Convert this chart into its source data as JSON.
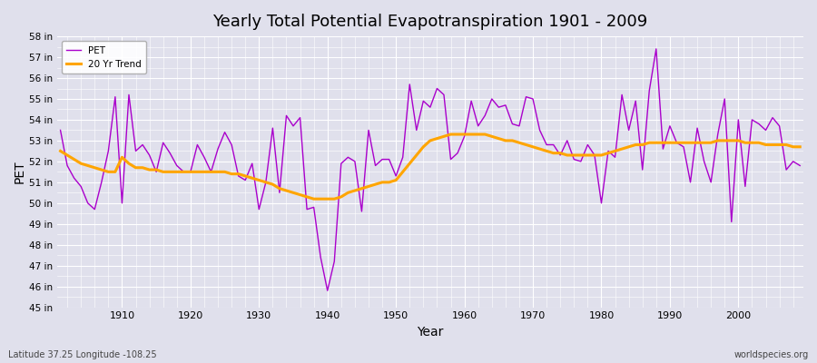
{
  "title": "Yearly Total Potential Evapotranspiration 1901 - 2009",
  "xlabel": "Year",
  "ylabel": "PET",
  "subtitle_left": "Latitude 37.25 Longitude -108.25",
  "subtitle_right": "worldspecies.org",
  "pet_color": "#AA00CC",
  "trend_color": "#FFA500",
  "bg_color": "#E0E0EC",
  "plot_bg_color": "#E0E0EC",
  "ylim": [
    45,
    58
  ],
  "yticks": [
    45,
    46,
    47,
    48,
    49,
    50,
    51,
    52,
    53,
    54,
    55,
    56,
    57,
    58
  ],
  "ytick_labels": [
    "45 in",
    "46 in",
    "47 in",
    "48 in",
    "49 in",
    "50 in",
    "51 in",
    "52 in",
    "53 in",
    "54 in",
    "55 in",
    "56 in",
    "57 in",
    "58 in"
  ],
  "xticks": [
    1910,
    1920,
    1930,
    1940,
    1950,
    1960,
    1970,
    1980,
    1990,
    2000
  ],
  "years": [
    1901,
    1902,
    1903,
    1904,
    1905,
    1906,
    1907,
    1908,
    1909,
    1910,
    1911,
    1912,
    1913,
    1914,
    1915,
    1916,
    1917,
    1918,
    1919,
    1920,
    1921,
    1922,
    1923,
    1924,
    1925,
    1926,
    1927,
    1928,
    1929,
    1930,
    1931,
    1932,
    1933,
    1934,
    1935,
    1936,
    1937,
    1938,
    1939,
    1940,
    1941,
    1942,
    1943,
    1944,
    1945,
    1946,
    1947,
    1948,
    1949,
    1950,
    1951,
    1952,
    1953,
    1954,
    1955,
    1956,
    1957,
    1958,
    1959,
    1960,
    1961,
    1962,
    1963,
    1964,
    1965,
    1966,
    1967,
    1968,
    1969,
    1970,
    1971,
    1972,
    1973,
    1974,
    1975,
    1976,
    1977,
    1978,
    1979,
    1980,
    1981,
    1982,
    1983,
    1984,
    1985,
    1986,
    1987,
    1988,
    1989,
    1990,
    1991,
    1992,
    1993,
    1994,
    1995,
    1996,
    1997,
    1998,
    1999,
    2000,
    2001,
    2002,
    2003,
    2004,
    2005,
    2006,
    2007,
    2008,
    2009
  ],
  "pet_values": [
    53.5,
    51.8,
    51.2,
    50.8,
    50.0,
    49.7,
    51.0,
    52.5,
    55.1,
    50.0,
    55.2,
    52.5,
    52.8,
    52.3,
    51.5,
    52.9,
    52.4,
    51.8,
    51.5,
    51.5,
    52.8,
    52.2,
    51.5,
    52.6,
    53.4,
    52.8,
    51.3,
    51.1,
    51.9,
    49.7,
    51.0,
    53.6,
    50.5,
    54.2,
    53.7,
    54.1,
    49.7,
    49.8,
    47.4,
    45.8,
    47.2,
    51.9,
    52.2,
    52.0,
    49.6,
    53.5,
    51.8,
    52.1,
    52.1,
    51.3,
    52.2,
    55.7,
    53.5,
    54.9,
    54.6,
    55.5,
    55.2,
    52.1,
    52.4,
    53.2,
    54.9,
    53.7,
    54.2,
    55.0,
    54.6,
    54.7,
    53.8,
    53.7,
    55.1,
    55.0,
    53.5,
    52.8,
    52.8,
    52.3,
    53.0,
    52.1,
    52.0,
    52.8,
    52.3,
    50.0,
    52.5,
    52.2,
    55.2,
    53.5,
    54.9,
    51.6,
    55.4,
    57.4,
    52.6,
    53.7,
    52.9,
    52.7,
    51.0,
    53.6,
    52.0,
    51.0,
    53.3,
    55.0,
    49.1,
    54.0,
    50.8,
    54.0,
    53.8,
    53.5,
    54.1,
    53.7,
    51.6,
    52.0,
    51.8
  ],
  "trend_years": [
    1901,
    1902,
    1903,
    1904,
    1905,
    1906,
    1907,
    1908,
    1909,
    1910,
    1911,
    1912,
    1913,
    1914,
    1915,
    1916,
    1917,
    1918,
    1919,
    1920,
    1921,
    1922,
    1923,
    1924,
    1925,
    1926,
    1927,
    1928,
    1929,
    1930,
    1931,
    1932,
    1933,
    1934,
    1935,
    1936,
    1937,
    1938,
    1939,
    1940,
    1941,
    1942,
    1943,
    1944,
    1945,
    1946,
    1947,
    1948,
    1949,
    1950,
    1951,
    1952,
    1953,
    1954,
    1955,
    1956,
    1957,
    1958,
    1959,
    1960,
    1961,
    1962,
    1963,
    1964,
    1965,
    1966,
    1967,
    1968,
    1969,
    1970,
    1971,
    1972,
    1973,
    1974,
    1975,
    1976,
    1977,
    1978,
    1979,
    1980,
    1981,
    1982,
    1983,
    1984,
    1985,
    1986,
    1987,
    1988,
    1989,
    1990,
    1991,
    1992,
    1993,
    1994,
    1995,
    1996,
    1997,
    1998,
    1999,
    2000,
    2001,
    2002,
    2003,
    2004,
    2005,
    2006,
    2007,
    2008,
    2009
  ],
  "trend_values": [
    52.5,
    52.3,
    52.1,
    51.9,
    51.8,
    51.7,
    51.6,
    51.5,
    51.5,
    52.2,
    51.9,
    51.7,
    51.7,
    51.6,
    51.6,
    51.5,
    51.5,
    51.5,
    51.5,
    51.5,
    51.5,
    51.5,
    51.5,
    51.5,
    51.5,
    51.4,
    51.4,
    51.3,
    51.2,
    51.1,
    51.0,
    50.9,
    50.7,
    50.6,
    50.5,
    50.4,
    50.3,
    50.2,
    50.2,
    50.2,
    50.2,
    50.3,
    50.5,
    50.6,
    50.7,
    50.8,
    50.9,
    51.0,
    51.0,
    51.1,
    51.5,
    51.9,
    52.3,
    52.7,
    53.0,
    53.1,
    53.2,
    53.3,
    53.3,
    53.3,
    53.3,
    53.3,
    53.3,
    53.2,
    53.1,
    53.0,
    53.0,
    52.9,
    52.8,
    52.7,
    52.6,
    52.5,
    52.4,
    52.4,
    52.3,
    52.3,
    52.3,
    52.3,
    52.3,
    52.3,
    52.4,
    52.5,
    52.6,
    52.7,
    52.8,
    52.8,
    52.9,
    52.9,
    52.9,
    52.9,
    52.9,
    52.9,
    52.9,
    52.9,
    52.9,
    52.9,
    53.0,
    53.0,
    53.0,
    53.0,
    52.9,
    52.9,
    52.9,
    52.8,
    52.8,
    52.8,
    52.8,
    52.7,
    52.7
  ]
}
